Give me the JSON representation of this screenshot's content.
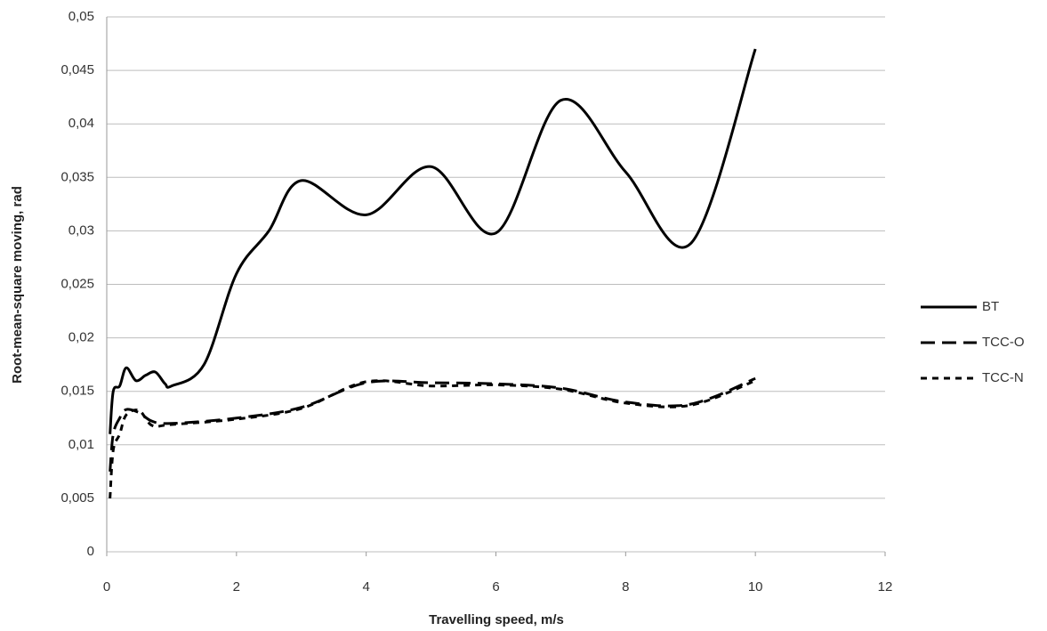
{
  "chart_data": {
    "type": "line",
    "x_label": "Travelling speed, m/s",
    "y_label": "Root-mean-square moving, rad",
    "xlim": [
      0,
      12
    ],
    "xticks": [
      0,
      2,
      4,
      6,
      8,
      10,
      12
    ],
    "ylim": [
      0,
      0.05
    ],
    "yticks": [
      0,
      {
        "value": 0.005,
        "label": "0,005"
      },
      {
        "value": 0.01,
        "label": "0,01"
      },
      {
        "value": 0.015,
        "label": "0,015"
      },
      {
        "value": 0.02,
        "label": "0,02"
      },
      {
        "value": 0.025,
        "label": "0,025"
      },
      {
        "value": 0.03,
        "label": "0,03"
      },
      {
        "value": 0.035,
        "label": "0,035"
      },
      {
        "value": 0.04,
        "label": "0,04"
      },
      {
        "value": 0.045,
        "label": "0,045"
      },
      {
        "value": 0.05,
        "label": "0,05"
      }
    ],
    "grid": true,
    "legend": "right",
    "series": [
      {
        "name": "BT",
        "color": "#000000",
        "style": "solid",
        "x": [
          0.05,
          0.1,
          0.2,
          0.3,
          0.45,
          0.6,
          0.75,
          0.9,
          1.0,
          1.5,
          2.0,
          2.5,
          3.0,
          4.0,
          5.0,
          6.0,
          7.0,
          8.0,
          9.0,
          10.0
        ],
        "values": [
          0.011,
          0.015,
          0.0155,
          0.0172,
          0.016,
          0.0165,
          0.0168,
          0.0157,
          0.0155,
          0.0175,
          0.026,
          0.03,
          0.0347,
          0.0315,
          0.036,
          0.0298,
          0.0422,
          0.0355,
          0.0288,
          0.047
        ]
      },
      {
        "name": "TCC-O",
        "color": "#000000",
        "style": "long-dash",
        "x": [
          0.05,
          0.1,
          0.2,
          0.3,
          0.5,
          0.7,
          1.0,
          2.0,
          3.0,
          4.0,
          5.0,
          6.0,
          7.0,
          8.0,
          9.0,
          10.0
        ],
        "values": [
          0.0075,
          0.011,
          0.0125,
          0.0133,
          0.013,
          0.0122,
          0.012,
          0.0125,
          0.0135,
          0.0158,
          0.0158,
          0.0157,
          0.0153,
          0.014,
          0.0138,
          0.0162
        ]
      },
      {
        "name": "TCC-N",
        "color": "#000000",
        "style": "short-dash",
        "x": [
          0.05,
          0.1,
          0.2,
          0.3,
          0.5,
          0.7,
          1.0,
          2.0,
          3.0,
          4.0,
          5.0,
          6.0,
          7.0,
          8.0,
          9.0,
          10.0
        ],
        "values": [
          0.005,
          0.0095,
          0.011,
          0.0128,
          0.0132,
          0.0118,
          0.0119,
          0.0124,
          0.0134,
          0.0159,
          0.0155,
          0.0156,
          0.0152,
          0.0139,
          0.0137,
          0.016
        ]
      }
    ]
  }
}
